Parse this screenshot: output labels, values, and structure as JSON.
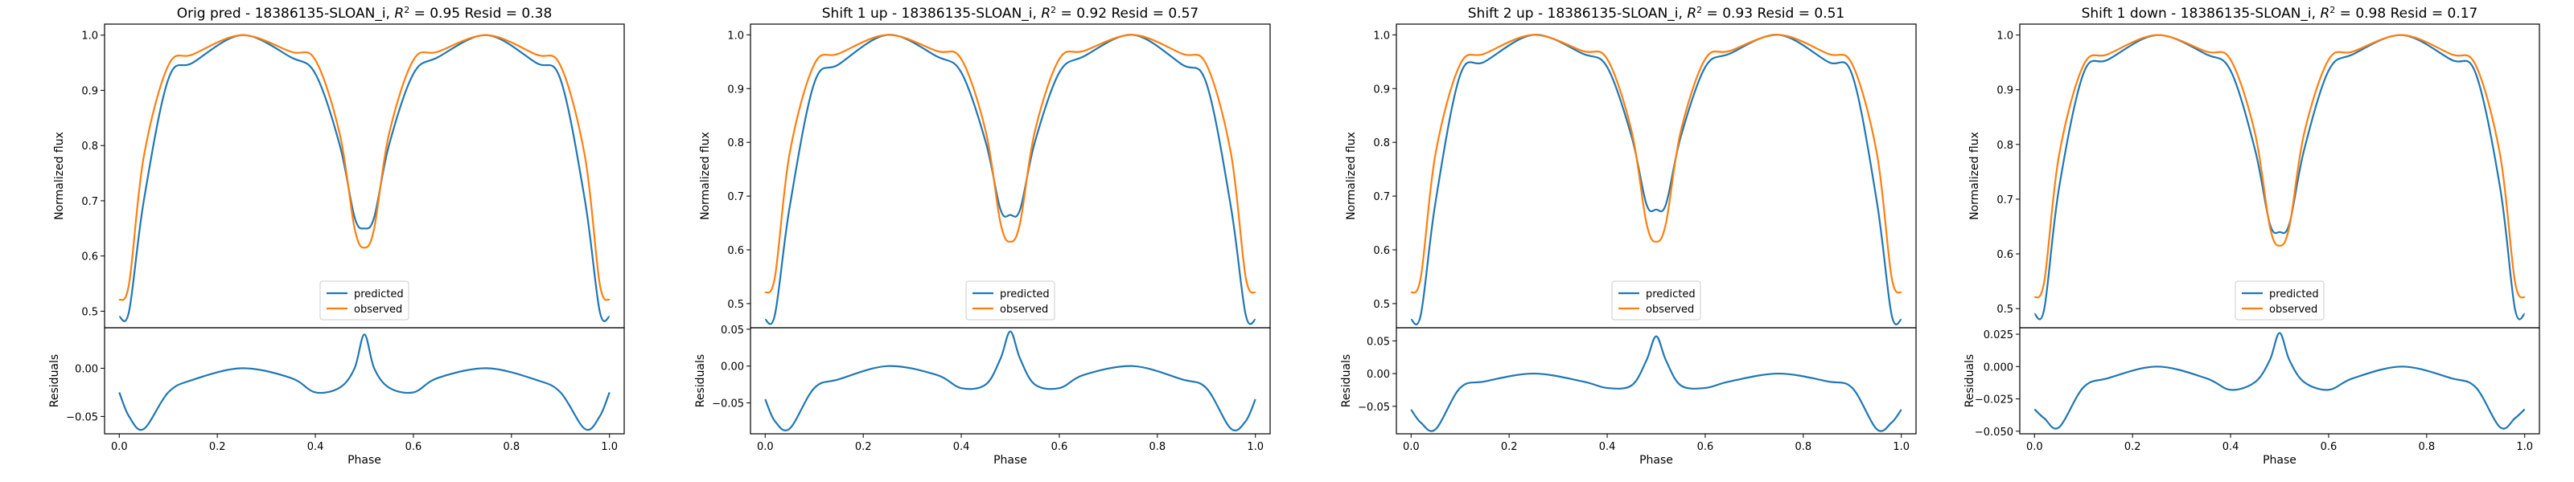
{
  "colors": {
    "predicted": "#1f77b4",
    "observed": "#ff7f0e",
    "axes": "#000000",
    "background": "#ffffff"
  },
  "chart_data": [
    {
      "type": "line",
      "title": "Orig pred - 18386135-SLOAN_i, R² = 0.95 Resid = 0.38",
      "title_parts": {
        "prefix": "Orig pred - 18386135-SLOAN_i, ",
        "r2": "0.95",
        "resid_label": " Resid = ",
        "resid": "0.38"
      },
      "xlabel": "Phase",
      "ylabel_top": "Normalized flux",
      "ylabel_bottom": "Residuals",
      "xlim": [
        -0.03,
        1.03
      ],
      "xticks": [
        0.0,
        0.2,
        0.4,
        0.6,
        0.8,
        1.0
      ],
      "xtick_labels": [
        "0.0",
        "0.2",
        "0.4",
        "0.6",
        "0.8",
        "1.0"
      ],
      "ylim_top": [
        0.47,
        1.02
      ],
      "yticks_top": [
        0.5,
        0.6,
        0.7,
        0.8,
        0.9,
        1.0
      ],
      "ytick_labels_top": [
        "0.5",
        "0.6",
        "0.7",
        "0.8",
        "0.9",
        "1.0"
      ],
      "ylim_bottom": [
        -0.068,
        0.042
      ],
      "yticks_bottom": [
        -0.05,
        0.0
      ],
      "ytick_labels_bottom": [
        "−0.05",
        "0.00"
      ],
      "legend": {
        "location": "lower center",
        "entries": [
          "predicted",
          "observed"
        ]
      },
      "x": [
        0.0,
        0.02,
        0.05,
        0.1,
        0.15,
        0.25,
        0.35,
        0.4,
        0.45,
        0.48,
        0.5,
        0.52,
        0.55,
        0.6,
        0.65,
        0.75,
        0.85,
        0.9,
        0.95,
        0.98,
        1.0
      ],
      "series": [
        {
          "name": "predicted",
          "values": [
            0.49,
            0.5,
            0.7,
            0.92,
            0.95,
            1.0,
            0.96,
            0.93,
            0.8,
            0.67,
            0.65,
            0.67,
            0.8,
            0.93,
            0.96,
            1.0,
            0.95,
            0.92,
            0.7,
            0.5,
            0.49
          ]
        },
        {
          "name": "observed",
          "values": [
            0.52,
            0.55,
            0.78,
            0.945,
            0.965,
            1.0,
            0.97,
            0.955,
            0.82,
            0.65,
            0.615,
            0.65,
            0.82,
            0.955,
            0.97,
            1.0,
            0.965,
            0.945,
            0.78,
            0.55,
            0.52
          ]
        }
      ],
      "residuals": [
        -0.025,
        -0.05,
        -0.063,
        -0.025,
        -0.012,
        0.0,
        -0.01,
        -0.025,
        -0.02,
        0.0,
        0.035,
        0.0,
        -0.02,
        -0.025,
        -0.01,
        0.0,
        -0.012,
        -0.025,
        -0.063,
        -0.05,
        -0.025
      ]
    },
    {
      "type": "line",
      "title": "Shift 1 up - 18386135-SLOAN_i, R² = 0.92 Resid = 0.57",
      "title_parts": {
        "prefix": "Shift 1 up - 18386135-SLOAN_i, ",
        "r2": "0.92",
        "resid_label": " Resid = ",
        "resid": "0.57"
      },
      "xlabel": "Phase",
      "ylabel_top": "Normalized flux",
      "ylabel_bottom": "Residuals",
      "xlim": [
        -0.03,
        1.03
      ],
      "xticks": [
        0.0,
        0.2,
        0.4,
        0.6,
        0.8,
        1.0
      ],
      "xtick_labels": [
        "0.0",
        "0.2",
        "0.4",
        "0.6",
        "0.8",
        "1.0"
      ],
      "ylim_top": [
        0.455,
        1.02
      ],
      "yticks_top": [
        0.5,
        0.6,
        0.7,
        0.8,
        0.9,
        1.0
      ],
      "ytick_labels_top": [
        "0.5",
        "0.6",
        "0.7",
        "0.8",
        "0.9",
        "1.0"
      ],
      "ylim_bottom": [
        -0.092,
        0.052
      ],
      "yticks_bottom": [
        -0.05,
        0.0,
        0.05
      ],
      "ytick_labels_bottom": [
        "−0.05",
        "0.00",
        "0.05"
      ],
      "legend": {
        "location": "lower center",
        "entries": [
          "predicted",
          "observed"
        ]
      },
      "x": [
        0.0,
        0.02,
        0.05,
        0.1,
        0.15,
        0.25,
        0.35,
        0.4,
        0.45,
        0.48,
        0.5,
        0.52,
        0.55,
        0.6,
        0.65,
        0.75,
        0.85,
        0.9,
        0.95,
        0.98,
        1.0
      ],
      "series": [
        {
          "name": "predicted",
          "values": [
            0.47,
            0.48,
            0.68,
            0.91,
            0.945,
            1.0,
            0.96,
            0.93,
            0.8,
            0.675,
            0.665,
            0.675,
            0.8,
            0.93,
            0.96,
            1.0,
            0.945,
            0.91,
            0.68,
            0.48,
            0.47
          ]
        },
        {
          "name": "observed",
          "values": [
            0.52,
            0.55,
            0.78,
            0.945,
            0.965,
            1.0,
            0.97,
            0.955,
            0.82,
            0.65,
            0.615,
            0.65,
            0.82,
            0.955,
            0.97,
            1.0,
            0.965,
            0.945,
            0.78,
            0.55,
            0.52
          ]
        }
      ],
      "residuals": [
        -0.045,
        -0.075,
        -0.085,
        -0.03,
        -0.018,
        0.0,
        -0.012,
        -0.03,
        -0.025,
        0.01,
        0.047,
        0.01,
        -0.025,
        -0.03,
        -0.012,
        0.0,
        -0.018,
        -0.03,
        -0.085,
        -0.075,
        -0.045
      ]
    },
    {
      "type": "line",
      "title": "Shift 2 up - 18386135-SLOAN_i, R² = 0.93 Resid = 0.51",
      "title_parts": {
        "prefix": "Shift 2 up - 18386135-SLOAN_i, ",
        "r2": "0.93",
        "resid_label": " Resid = ",
        "resid": "0.51"
      },
      "xlabel": "Phase",
      "ylabel_top": "Normalized flux",
      "ylabel_bottom": "Residuals",
      "xlim": [
        -0.03,
        1.03
      ],
      "xticks": [
        0.0,
        0.2,
        0.4,
        0.6,
        0.8,
        1.0
      ],
      "xtick_labels": [
        "0.0",
        "0.2",
        "0.4",
        "0.6",
        "0.8",
        "1.0"
      ],
      "ylim_top": [
        0.455,
        1.02
      ],
      "yticks_top": [
        0.5,
        0.6,
        0.7,
        0.8,
        0.9,
        1.0
      ],
      "ytick_labels_top": [
        "0.5",
        "0.6",
        "0.7",
        "0.8",
        "0.9",
        "1.0"
      ],
      "ylim_bottom": [
        -0.092,
        0.07
      ],
      "yticks_bottom": [
        -0.05,
        0.0,
        0.05
      ],
      "ytick_labels_bottom": [
        "−0.05",
        "0.00",
        "0.05"
      ],
      "legend": {
        "location": "lower center",
        "entries": [
          "predicted",
          "observed"
        ]
      },
      "x": [
        0.0,
        0.02,
        0.05,
        0.1,
        0.15,
        0.25,
        0.35,
        0.4,
        0.45,
        0.48,
        0.5,
        0.52,
        0.55,
        0.6,
        0.65,
        0.75,
        0.85,
        0.9,
        0.95,
        0.98,
        1.0
      ],
      "series": [
        {
          "name": "predicted",
          "values": [
            0.47,
            0.48,
            0.69,
            0.925,
            0.95,
            1.0,
            0.965,
            0.94,
            0.81,
            0.685,
            0.675,
            0.685,
            0.81,
            0.94,
            0.965,
            1.0,
            0.95,
            0.925,
            0.69,
            0.48,
            0.47
          ]
        },
        {
          "name": "observed",
          "values": [
            0.52,
            0.55,
            0.78,
            0.945,
            0.965,
            1.0,
            0.97,
            0.955,
            0.82,
            0.65,
            0.615,
            0.65,
            0.82,
            0.955,
            0.97,
            1.0,
            0.965,
            0.945,
            0.78,
            0.55,
            0.52
          ]
        }
      ],
      "residuals": [
        -0.055,
        -0.075,
        -0.085,
        -0.022,
        -0.012,
        0.0,
        -0.012,
        -0.022,
        -0.018,
        0.02,
        0.057,
        0.02,
        -0.018,
        -0.022,
        -0.012,
        0.0,
        -0.012,
        -0.022,
        -0.085,
        -0.075,
        -0.055
      ]
    },
    {
      "type": "line",
      "title": "Shift 1 down - 18386135-SLOAN_i, R² = 0.98 Resid = 0.17",
      "title_parts": {
        "prefix": "Shift 1 down - 18386135-SLOAN_i, ",
        "r2": "0.98",
        "resid_label": " Resid = ",
        "resid": "0.17"
      },
      "xlabel": "Phase",
      "ylabel_top": "Normalized flux",
      "ylabel_bottom": "Residuals",
      "xlim": [
        -0.03,
        1.03
      ],
      "xticks": [
        0.0,
        0.2,
        0.4,
        0.6,
        0.8,
        1.0
      ],
      "xtick_labels": [
        "0.0",
        "0.2",
        "0.4",
        "0.6",
        "0.8",
        "1.0"
      ],
      "ylim_top": [
        0.465,
        1.02
      ],
      "yticks_top": [
        0.5,
        0.6,
        0.7,
        0.8,
        0.9,
        1.0
      ],
      "ytick_labels_top": [
        "0.5",
        "0.6",
        "0.7",
        "0.8",
        "0.9",
        "1.0"
      ],
      "ylim_bottom": [
        -0.052,
        0.03
      ],
      "yticks_bottom": [
        -0.05,
        -0.025,
        0.0,
        0.025
      ],
      "ytick_labels_bottom": [
        "−0.050",
        "−0.025",
        "0.000",
        "0.025"
      ],
      "legend": {
        "location": "lower center",
        "entries": [
          "predicted",
          "observed"
        ]
      },
      "x": [
        0.0,
        0.02,
        0.05,
        0.1,
        0.15,
        0.25,
        0.35,
        0.4,
        0.45,
        0.48,
        0.5,
        0.52,
        0.55,
        0.6,
        0.65,
        0.75,
        0.85,
        0.9,
        0.95,
        0.98,
        1.0
      ],
      "series": [
        {
          "name": "predicted",
          "values": [
            0.49,
            0.5,
            0.72,
            0.93,
            0.955,
            1.0,
            0.965,
            0.935,
            0.79,
            0.655,
            0.64,
            0.655,
            0.79,
            0.935,
            0.965,
            1.0,
            0.955,
            0.93,
            0.72,
            0.5,
            0.49
          ]
        },
        {
          "name": "observed",
          "values": [
            0.52,
            0.55,
            0.78,
            0.945,
            0.965,
            1.0,
            0.97,
            0.955,
            0.82,
            0.65,
            0.615,
            0.65,
            0.82,
            0.955,
            0.97,
            1.0,
            0.965,
            0.945,
            0.78,
            0.55,
            0.52
          ]
        }
      ],
      "residuals": [
        -0.033,
        -0.04,
        -0.047,
        -0.016,
        -0.009,
        0.0,
        -0.009,
        -0.018,
        -0.012,
        0.005,
        0.026,
        0.005,
        -0.012,
        -0.018,
        -0.009,
        0.0,
        -0.009,
        -0.016,
        -0.047,
        -0.04,
        -0.033
      ]
    }
  ]
}
